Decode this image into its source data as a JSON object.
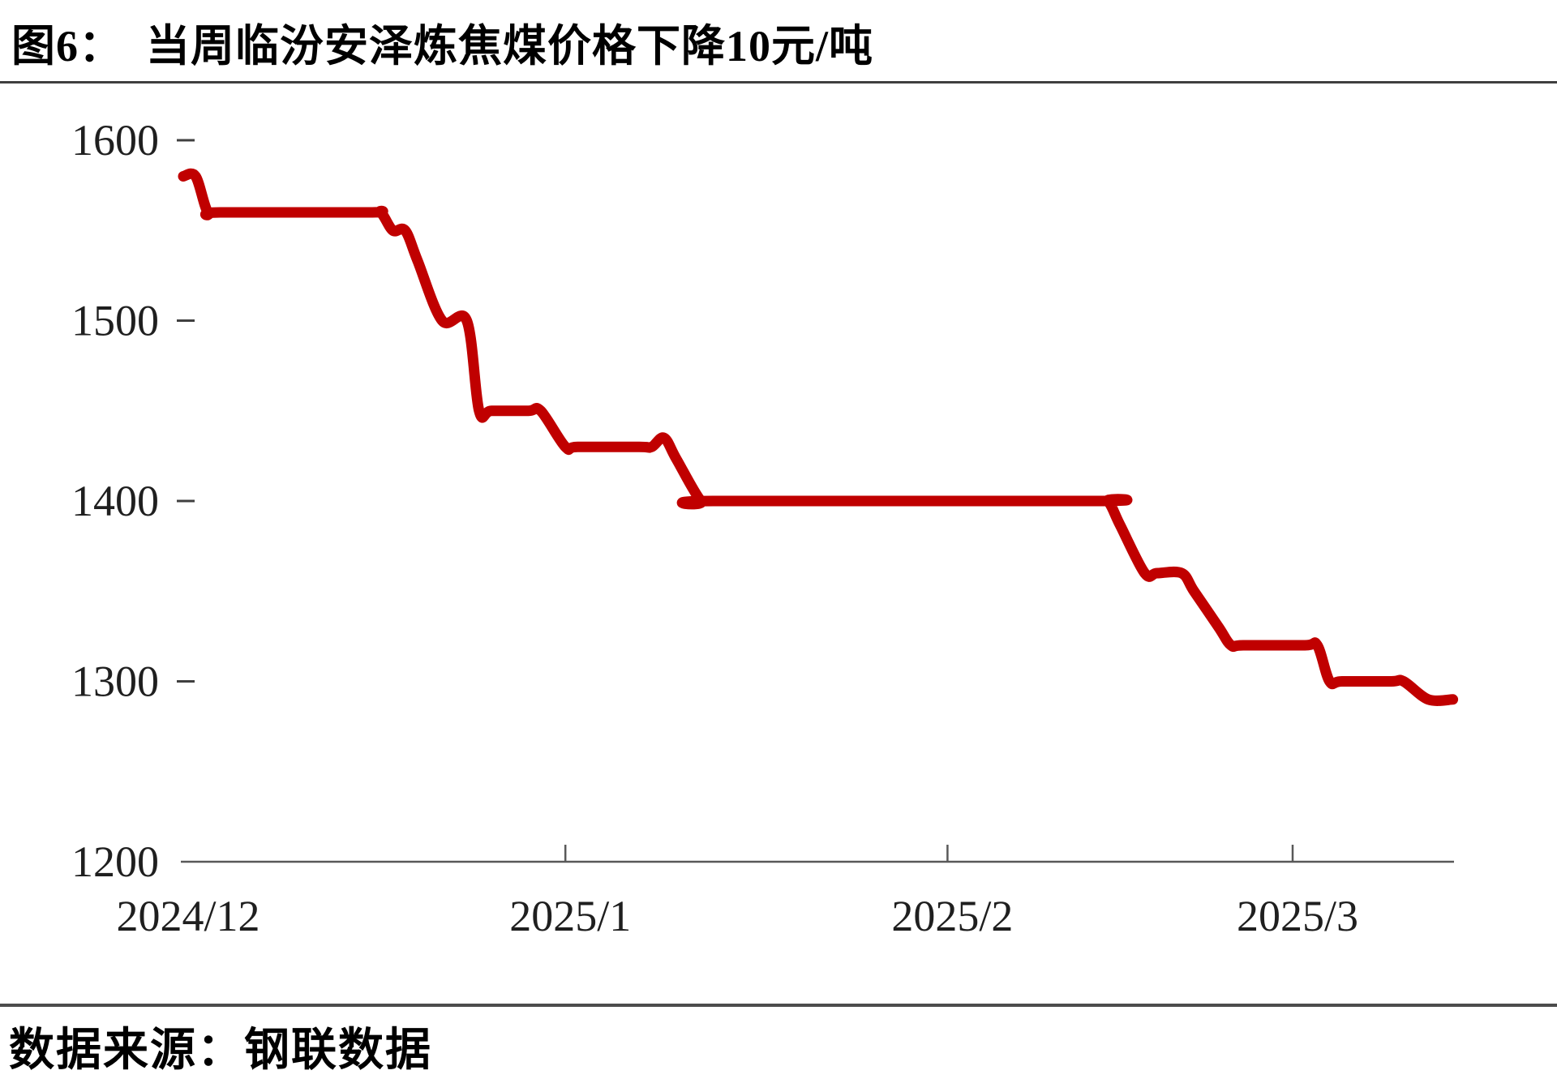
{
  "header": {
    "figure_label": "图6：",
    "title": "当周临汾安泽炼焦煤价格下降10元/吨"
  },
  "footer": {
    "source_label": "数据来源：",
    "source": "钢联数据"
  },
  "chart_data": {
    "type": "line",
    "title": "当周临汾安泽炼焦煤价格下降10元/吨",
    "line_color": "#C00000",
    "axis_color": "#595959",
    "tick_color": "#404040",
    "label_color": "#1f1f1f",
    "grid": false,
    "legend": false,
    "y_axis": {
      "min": 1200,
      "max": 1600,
      "ticks": [
        1600,
        1500,
        1400,
        1300,
        1200
      ]
    },
    "x_axis": {
      "ticks": [
        {
          "label": "2024/12",
          "date": "2024-12-01",
          "tick": false
        },
        {
          "label": "2025/1",
          "date": "2025-01-01",
          "tick": true
        },
        {
          "label": "2025/2",
          "date": "2025-02-01",
          "tick": true
        },
        {
          "label": "2025/3",
          "date": "2025-03-01",
          "tick": true
        }
      ]
    },
    "points": [
      {
        "date": "2024-12-01",
        "value": 1580
      },
      {
        "date": "2024-12-02",
        "value": 1580
      },
      {
        "date": "2024-12-03",
        "value": 1560
      },
      {
        "date": "2024-12-17",
        "value": 1560
      },
      {
        "date": "2024-12-18",
        "value": 1550
      },
      {
        "date": "2024-12-19",
        "value": 1550
      },
      {
        "date": "2024-12-22",
        "value": 1500
      },
      {
        "date": "2024-12-24",
        "value": 1500
      },
      {
        "date": "2024-12-25",
        "value": 1450
      },
      {
        "date": "2024-12-30",
        "value": 1450
      },
      {
        "date": "2025-01-01",
        "value": 1430
      },
      {
        "date": "2025-01-08",
        "value": 1430
      },
      {
        "date": "2025-01-09",
        "value": 1435
      },
      {
        "date": "2025-01-12",
        "value": 1400
      },
      {
        "date": "2025-02-14",
        "value": 1400
      },
      {
        "date": "2025-02-17",
        "value": 1360
      },
      {
        "date": "2025-02-20",
        "value": 1360
      },
      {
        "date": "2025-02-24",
        "value": 1320
      },
      {
        "date": "2025-03-03",
        "value": 1320
      },
      {
        "date": "2025-03-04",
        "value": 1300
      },
      {
        "date": "2025-03-10",
        "value": 1300
      },
      {
        "date": "2025-03-12",
        "value": 1290
      },
      {
        "date": "2025-03-14",
        "value": 1290
      }
    ]
  }
}
